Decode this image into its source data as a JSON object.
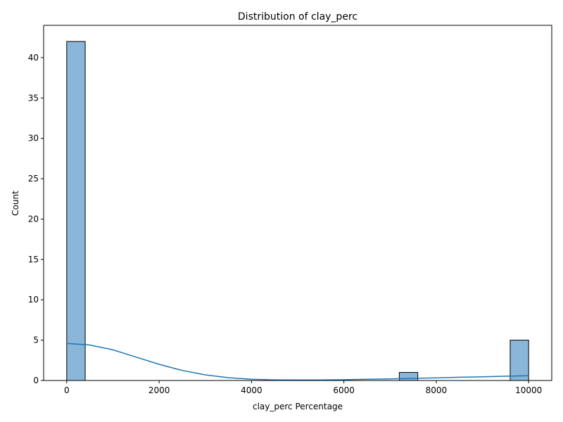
{
  "chart_data": {
    "type": "bar",
    "title": "Distribution of clay_perc",
    "xlabel": "clay_perc Percentage",
    "ylabel": "Count",
    "xlim": [
      -500,
      10500
    ],
    "ylim": [
      0,
      44
    ],
    "xticks": [
      0,
      2000,
      4000,
      6000,
      8000,
      10000
    ],
    "yticks": [
      0,
      5,
      10,
      15,
      20,
      25,
      30,
      35,
      40
    ],
    "bin_width": 400,
    "bins": [
      {
        "x0": 0,
        "x1": 400,
        "count": 42
      },
      {
        "x0": 7200,
        "x1": 7600,
        "count": 1
      },
      {
        "x0": 9600,
        "x1": 10000,
        "count": 5
      }
    ],
    "kde": {
      "x": [
        0,
        500,
        1000,
        1500,
        2000,
        2500,
        3000,
        3500,
        4000,
        4500,
        5000,
        5500,
        6000,
        6500,
        7000,
        7500,
        8000,
        8500,
        9000,
        9500,
        10000
      ],
      "y": [
        4.6,
        4.4,
        3.8,
        2.9,
        2.0,
        1.25,
        0.7,
        0.35,
        0.15,
        0.08,
        0.06,
        0.07,
        0.1,
        0.15,
        0.2,
        0.27,
        0.33,
        0.4,
        0.46,
        0.53,
        0.58
      ]
    },
    "grid": false,
    "legend": "none",
    "colors": {
      "bar_fill": "#8ab6d9",
      "bar_edge": "#000000",
      "kde_line": "#1f77b4"
    }
  }
}
